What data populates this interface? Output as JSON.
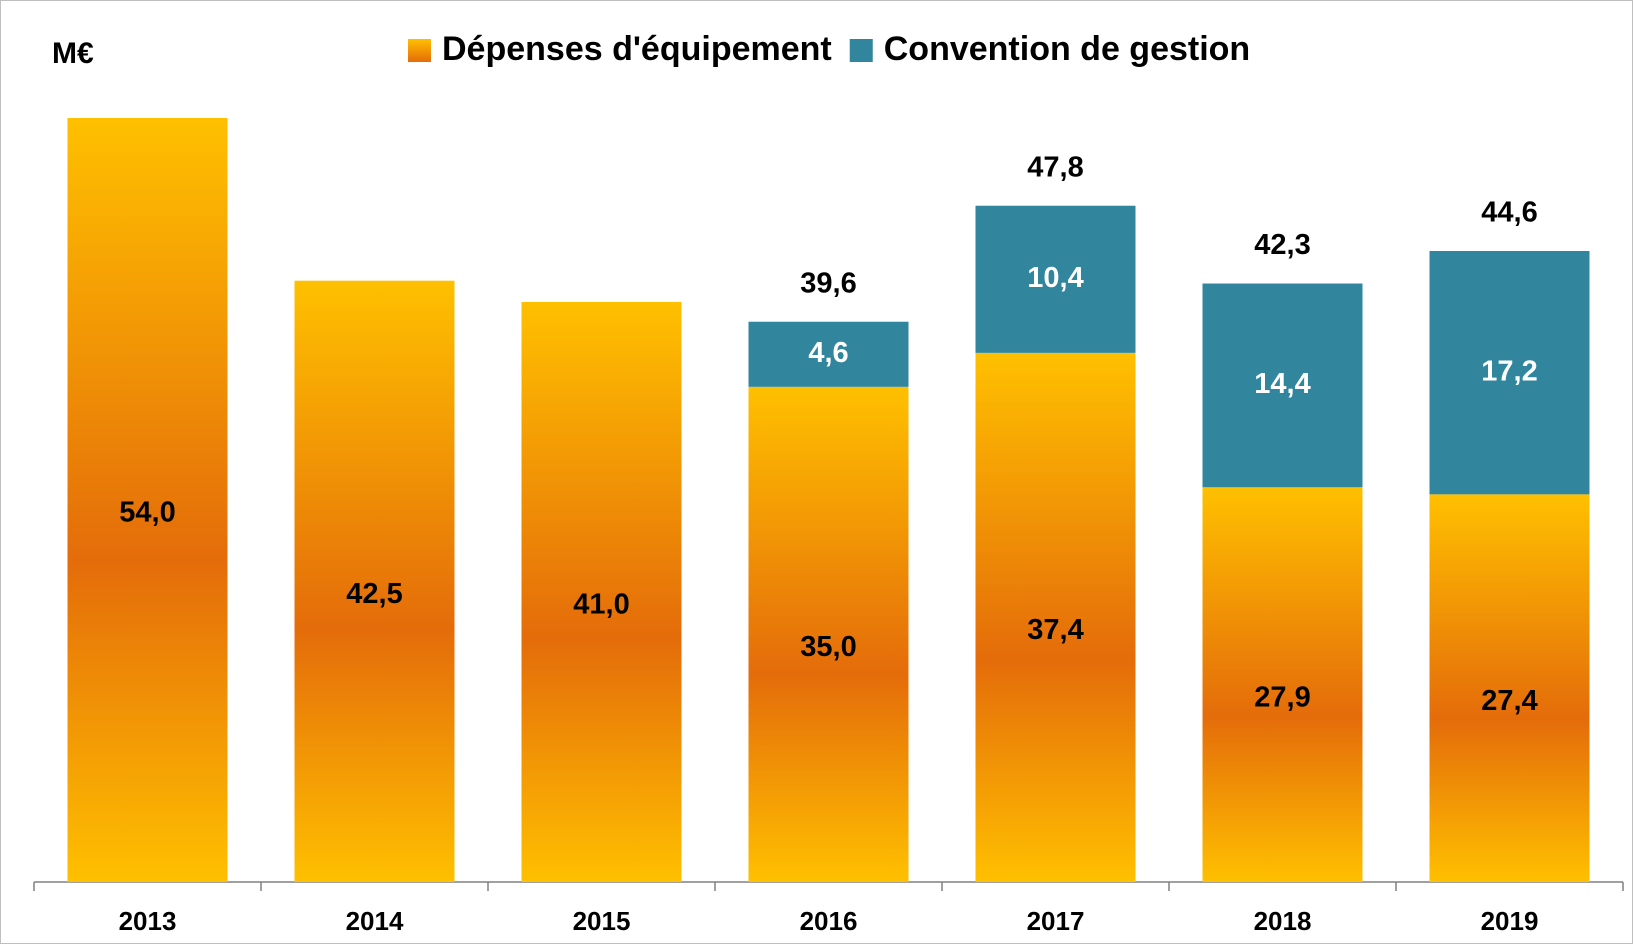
{
  "chart_data": {
    "type": "bar",
    "stacked": true,
    "y_axis_label": "M€",
    "categories": [
      "2013",
      "2014",
      "2015",
      "2016",
      "2017",
      "2018",
      "2019"
    ],
    "series": [
      {
        "name": "Dépenses d'équipement",
        "gradient": [
          "#ffc000",
          "#e46c0a"
        ],
        "values": [
          54.0,
          42.5,
          41.0,
          35.0,
          37.4,
          27.9,
          27.4
        ],
        "value_labels": [
          "54,0",
          "42,5",
          "41,0",
          "35,0",
          "37,4",
          "27,9",
          "27,4"
        ]
      },
      {
        "name": "Convention de gestion",
        "color": "#31859c",
        "values": [
          null,
          null,
          null,
          4.6,
          10.4,
          14.4,
          17.2
        ],
        "value_labels": [
          null,
          null,
          null,
          "4,6",
          "10,4",
          "14,4",
          "17,2"
        ]
      }
    ],
    "totals": [
      null,
      null,
      null,
      39.6,
      47.8,
      42.3,
      44.6
    ],
    "total_labels": [
      null,
      null,
      null,
      "39,6",
      "47,8",
      "42,3",
      "44,6"
    ]
  }
}
